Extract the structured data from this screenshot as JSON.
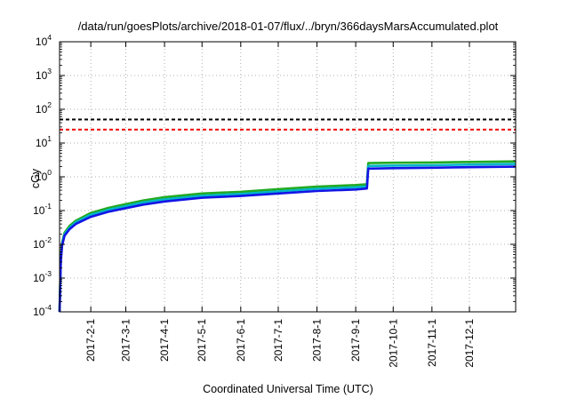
{
  "chart_data": {
    "type": "line",
    "title": "/data/run/goesPlots/archive/2018-01-07/flux/../bryn/366daysMarsAccumulated.plot",
    "xlabel": "Coordinated Universal Time (UTC)",
    "ylabel": "cGy",
    "yscale": "log",
    "ylim": [
      0.0001,
      10000
    ],
    "xlim": [
      "2017-01-07",
      "2018-01-07"
    ],
    "x_tick_labels": [
      "2017-2-1",
      "2017-3-1",
      "2017-4-1",
      "2017-5-1",
      "2017-6-1",
      "2017-7-1",
      "2017-8-1",
      "2017-9-1",
      "2017-10-1",
      "2017-11-1",
      "2017-12-1"
    ],
    "x_tick_dates": [
      "2017-02-01",
      "2017-03-01",
      "2017-04-01",
      "2017-05-01",
      "2017-06-01",
      "2017-07-01",
      "2017-08-01",
      "2017-09-01",
      "2017-10-01",
      "2017-11-01",
      "2017-12-01"
    ],
    "y_tick_labels": [
      {
        "base": "10",
        "exp": "-4"
      },
      {
        "base": "10",
        "exp": "-3"
      },
      {
        "base": "10",
        "exp": "-2"
      },
      {
        "base": "10",
        "exp": "-1"
      },
      {
        "base": "10",
        "exp": "0"
      },
      {
        "base": "10",
        "exp": "1"
      },
      {
        "base": "10",
        "exp": "2"
      },
      {
        "base": "10",
        "exp": "3"
      },
      {
        "base": "10",
        "exp": "4"
      }
    ],
    "y_tick_values": [
      0.0001,
      0.001,
      0.01,
      0.1,
      1,
      10,
      100,
      1000,
      10000
    ],
    "grid": "dotted, x ticks and y decades",
    "series": [
      {
        "color": "#22aa22",
        "x": [
          "2017-01-07",
          "2017-01-08",
          "2017-01-09",
          "2017-01-11",
          "2017-01-15",
          "2017-01-20",
          "2017-02-01",
          "2017-02-15",
          "2017-03-01",
          "2017-03-15",
          "2017-04-01",
          "2017-05-01",
          "2017-06-01",
          "2017-07-01",
          "2017-08-01",
          "2017-09-01",
          "2017-09-10",
          "2017-09-11",
          "2017-10-01",
          "2017-11-01",
          "2017-12-01",
          "2018-01-07"
        ],
        "values": [
          0.0001,
          0.004,
          0.011,
          0.022,
          0.035,
          0.05,
          0.085,
          0.12,
          0.155,
          0.2,
          0.25,
          0.32,
          0.36,
          0.43,
          0.51,
          0.57,
          0.6,
          2.55,
          2.6,
          2.65,
          2.75,
          2.85
        ]
      },
      {
        "color": "#00b4c8",
        "x": [
          "2017-01-07",
          "2017-01-08",
          "2017-01-09",
          "2017-01-11",
          "2017-01-15",
          "2017-01-20",
          "2017-02-01",
          "2017-02-15",
          "2017-03-01",
          "2017-03-15",
          "2017-04-01",
          "2017-05-01",
          "2017-06-01",
          "2017-07-01",
          "2017-08-01",
          "2017-09-01",
          "2017-09-10",
          "2017-09-11",
          "2017-10-01",
          "2017-11-01",
          "2017-12-01",
          "2018-01-07"
        ],
        "values": [
          0.0001,
          0.0035,
          0.01,
          0.02,
          0.031,
          0.045,
          0.075,
          0.105,
          0.135,
          0.175,
          0.215,
          0.275,
          0.31,
          0.37,
          0.44,
          0.49,
          0.52,
          2.1,
          2.15,
          2.2,
          2.3,
          2.4
        ]
      },
      {
        "color": "#1414e6",
        "x": [
          "2017-01-07",
          "2017-01-08",
          "2017-01-09",
          "2017-01-11",
          "2017-01-15",
          "2017-01-20",
          "2017-02-01",
          "2017-02-15",
          "2017-03-01",
          "2017-03-15",
          "2017-04-01",
          "2017-05-01",
          "2017-06-01",
          "2017-07-01",
          "2017-08-01",
          "2017-09-01",
          "2017-09-10",
          "2017-09-11",
          "2017-10-01",
          "2017-11-01",
          "2017-12-01",
          "2018-01-07"
        ],
        "values": [
          0.0001,
          0.003,
          0.009,
          0.018,
          0.028,
          0.04,
          0.065,
          0.092,
          0.118,
          0.15,
          0.185,
          0.24,
          0.27,
          0.32,
          0.38,
          0.42,
          0.45,
          1.75,
          1.8,
          1.85,
          1.92,
          2.0
        ]
      }
    ],
    "reference_lines": [
      {
        "value": 50,
        "color": "#000000",
        "style": "dashed"
      },
      {
        "value": 25,
        "color": "#ee0000",
        "style": "dashed"
      }
    ]
  }
}
